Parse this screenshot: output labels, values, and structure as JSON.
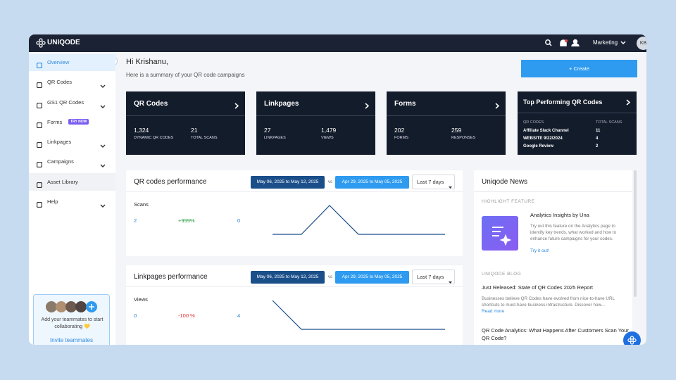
{
  "nav": {
    "brand": "UNIQODE",
    "workspace": "Marketing",
    "avatar": "KB"
  },
  "sidebar": {
    "items": [
      {
        "label": "Overview"
      },
      {
        "label": "QR Codes"
      },
      {
        "label": "GS1 QR Codes"
      },
      {
        "label": "Forms",
        "badge": "TRY NOW"
      },
      {
        "label": "Linkpages"
      },
      {
        "label": "Campaigns"
      },
      {
        "label": "Asset Library"
      },
      {
        "label": "Help"
      }
    ],
    "invite": {
      "text": "Add your teammates to start collaborating 💛",
      "link": "Invite teammates"
    }
  },
  "greeting": {
    "title": "Hi Krishanu,",
    "subtitle": "Here is a summary of your QR code campaigns",
    "button": "+ Create"
  },
  "cards": [
    {
      "title": "QR Codes",
      "stats": [
        {
          "value": "1,324",
          "label": "DYNAMIC QR CODES"
        },
        {
          "value": "21",
          "label": "TOTAL SCANS"
        }
      ]
    },
    {
      "title": "Linkpages",
      "stats": [
        {
          "value": "27",
          "label": "LINKPAGES"
        },
        {
          "value": "1,479",
          "label": "VIEWS"
        }
      ]
    },
    {
      "title": "Forms",
      "stats": [
        {
          "value": "202",
          "label": "FORMS"
        },
        {
          "value": "259",
          "label": "RESPONSES"
        }
      ]
    }
  ],
  "top": {
    "title": "Top Performing QR Codes",
    "columns": [
      "QR CODES",
      "TOTAL SCANS"
    ],
    "rows": [
      [
        "Affiliate Slack Channel",
        "11"
      ],
      [
        "WEBSITE 9/22/2024",
        "4"
      ],
      [
        "Google Review",
        "2"
      ]
    ]
  },
  "panels": [
    {
      "title": "QR codes performance",
      "range_a": "May 06, 2025 to May 12, 2025",
      "vs": "vs",
      "range_b": "Apr 29, 2025 to May 05, 2025",
      "period": "Last 7 days",
      "metric": "Scans",
      "current": "2",
      "change": "+999%",
      "previous": "0"
    },
    {
      "title": "Linkpages performance",
      "range_a": "May 06, 2025 to May 12, 2025",
      "vs": "vs",
      "range_b": "Apr 29, 2025 to May 05, 2025",
      "period": "Last 7 days",
      "metric": "Views",
      "current": "0",
      "change": "-100 %",
      "previous": "4"
    }
  ],
  "news": {
    "title": "Uniqode News",
    "feature_heading": "HIGHLIGHT FEATURE",
    "feature_title": "Analytics Insights by Una",
    "feature_text": "Try out this feature on the Analytics page to identify key trends, what worked and how to enhance future campaigns for your codes.",
    "feature_link": "Try it out!",
    "blog_heading": "UNIQODE BLOG",
    "posts": [
      {
        "title": "Just Released: State of QR Codes 2025 Report",
        "text": "Businesses believe QR Codes have evolved from nice-to-have URL shortcuts to must-have business infrastructure. Discover how...",
        "link": "Read more"
      },
      {
        "title": "QR Code Analytics: What Happens After Customers Scan Your QR Code?"
      }
    ]
  }
}
